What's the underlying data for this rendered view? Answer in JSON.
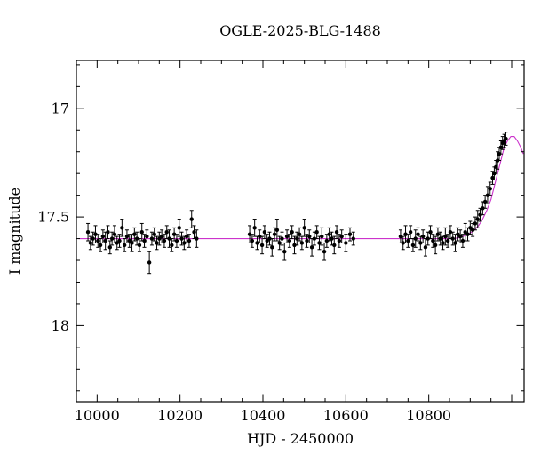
{
  "chart_data": {
    "type": "scatter",
    "title": "OGLE-2025-BLG-1488",
    "xlabel": "HJD - 2450000",
    "ylabel": "I magnitude",
    "xlim": [
      9950,
      11030
    ],
    "ylim_mag": [
      18.35,
      16.78
    ],
    "x_minor_step": 50,
    "x_major_ticks": [
      {
        "value": 10000,
        "label": "10000"
      },
      {
        "value": 10200,
        "label": "10200"
      },
      {
        "value": 10400,
        "label": "10400"
      },
      {
        "value": 10600,
        "label": "10600"
      },
      {
        "value": 10800,
        "label": "10800"
      },
      {
        "value": 11000,
        "label": ""
      }
    ],
    "y_minor_step": 0.1,
    "y_major_ticks": [
      {
        "value": 17.0,
        "label": "17"
      },
      {
        "value": 17.5,
        "label": "17.5"
      },
      {
        "value": 18.0,
        "label": "18"
      }
    ],
    "point_color": "#000000",
    "model_color": "#cc33cc",
    "baseline_mag": 17.6,
    "model_curve": [
      [
        9955,
        17.6
      ],
      [
        10860,
        17.6
      ],
      [
        10875,
        17.595
      ],
      [
        10890,
        17.585
      ],
      [
        10900,
        17.575
      ],
      [
        10910,
        17.56
      ],
      [
        10920,
        17.54
      ],
      [
        10930,
        17.51
      ],
      [
        10940,
        17.47
      ],
      [
        10950,
        17.42
      ],
      [
        10958,
        17.36
      ],
      [
        10966,
        17.3
      ],
      [
        10974,
        17.24
      ],
      [
        10982,
        17.18
      ],
      [
        10990,
        17.15
      ],
      [
        10998,
        17.13
      ],
      [
        11006,
        17.13
      ],
      [
        11014,
        17.15
      ],
      [
        11022,
        17.18
      ],
      [
        11028,
        17.21
      ]
    ],
    "points": [
      [
        9978,
        17.57,
        0.04
      ],
      [
        9984,
        17.62,
        0.03
      ],
      [
        9990,
        17.6,
        0.03
      ],
      [
        9996,
        17.58,
        0.04
      ],
      [
        10002,
        17.61,
        0.03
      ],
      [
        10008,
        17.63,
        0.03
      ],
      [
        10014,
        17.59,
        0.03
      ],
      [
        10020,
        17.61,
        0.04
      ],
      [
        10026,
        17.57,
        0.03
      ],
      [
        10031,
        17.64,
        0.03
      ],
      [
        10036,
        17.6,
        0.03
      ],
      [
        10042,
        17.58,
        0.04
      ],
      [
        10048,
        17.62,
        0.03
      ],
      [
        10054,
        17.61,
        0.03
      ],
      [
        10060,
        17.55,
        0.04
      ],
      [
        10066,
        17.63,
        0.03
      ],
      [
        10072,
        17.59,
        0.03
      ],
      [
        10078,
        17.61,
        0.03
      ],
      [
        10084,
        17.62,
        0.04
      ],
      [
        10090,
        17.58,
        0.03
      ],
      [
        10096,
        17.6,
        0.03
      ],
      [
        10102,
        17.63,
        0.03
      ],
      [
        10108,
        17.57,
        0.04
      ],
      [
        10114,
        17.61,
        0.03
      ],
      [
        10120,
        17.59,
        0.03
      ],
      [
        10126,
        17.71,
        0.05
      ],
      [
        10132,
        17.6,
        0.03
      ],
      [
        10138,
        17.58,
        0.03
      ],
      [
        10144,
        17.62,
        0.03
      ],
      [
        10150,
        17.6,
        0.03
      ],
      [
        10156,
        17.59,
        0.03
      ],
      [
        10162,
        17.61,
        0.03
      ],
      [
        10168,
        17.57,
        0.03
      ],
      [
        10174,
        17.6,
        0.04
      ],
      [
        10180,
        17.63,
        0.03
      ],
      [
        10186,
        17.58,
        0.03
      ],
      [
        10192,
        17.61,
        0.03
      ],
      [
        10198,
        17.55,
        0.04
      ],
      [
        10204,
        17.6,
        0.03
      ],
      [
        10210,
        17.62,
        0.03
      ],
      [
        10216,
        17.59,
        0.03
      ],
      [
        10222,
        17.61,
        0.03
      ],
      [
        10228,
        17.51,
        0.04
      ],
      [
        10234,
        17.57,
        0.03
      ],
      [
        10240,
        17.6,
        0.04
      ],
      [
        10368,
        17.58,
        0.04
      ],
      [
        10374,
        17.61,
        0.03
      ],
      [
        10380,
        17.55,
        0.04
      ],
      [
        10386,
        17.62,
        0.03
      ],
      [
        10392,
        17.59,
        0.03
      ],
      [
        10398,
        17.63,
        0.04
      ],
      [
        10404,
        17.57,
        0.03
      ],
      [
        10410,
        17.61,
        0.03
      ],
      [
        10416,
        17.6,
        0.03
      ],
      [
        10422,
        17.64,
        0.04
      ],
      [
        10428,
        17.58,
        0.03
      ],
      [
        10434,
        17.56,
        0.05
      ],
      [
        10440,
        17.62,
        0.03
      ],
      [
        10446,
        17.6,
        0.03
      ],
      [
        10452,
        17.66,
        0.04
      ],
      [
        10458,
        17.59,
        0.03
      ],
      [
        10464,
        17.61,
        0.03
      ],
      [
        10470,
        17.57,
        0.03
      ],
      [
        10476,
        17.63,
        0.04
      ],
      [
        10482,
        17.6,
        0.03
      ],
      [
        10488,
        17.58,
        0.03
      ],
      [
        10494,
        17.62,
        0.03
      ],
      [
        10500,
        17.55,
        0.04
      ],
      [
        10506,
        17.61,
        0.03
      ],
      [
        10512,
        17.59,
        0.03
      ],
      [
        10518,
        17.64,
        0.04
      ],
      [
        10524,
        17.6,
        0.03
      ],
      [
        10530,
        17.57,
        0.03
      ],
      [
        10536,
        17.62,
        0.03
      ],
      [
        10542,
        17.59,
        0.04
      ],
      [
        10548,
        17.66,
        0.04
      ],
      [
        10554,
        17.61,
        0.03
      ],
      [
        10560,
        17.58,
        0.03
      ],
      [
        10566,
        17.6,
        0.03
      ],
      [
        10572,
        17.63,
        0.04
      ],
      [
        10578,
        17.57,
        0.03
      ],
      [
        10584,
        17.61,
        0.03
      ],
      [
        10590,
        17.59,
        0.03
      ],
      [
        10600,
        17.62,
        0.04
      ],
      [
        10610,
        17.58,
        0.03
      ],
      [
        10618,
        17.6,
        0.03
      ],
      [
        10732,
        17.59,
        0.03
      ],
      [
        10738,
        17.62,
        0.03
      ],
      [
        10744,
        17.58,
        0.04
      ],
      [
        10750,
        17.61,
        0.03
      ],
      [
        10756,
        17.57,
        0.03
      ],
      [
        10762,
        17.63,
        0.03
      ],
      [
        10768,
        17.6,
        0.04
      ],
      [
        10774,
        17.58,
        0.03
      ],
      [
        10780,
        17.62,
        0.03
      ],
      [
        10786,
        17.59,
        0.03
      ],
      [
        10792,
        17.64,
        0.04
      ],
      [
        10798,
        17.6,
        0.03
      ],
      [
        10804,
        17.57,
        0.03
      ],
      [
        10810,
        17.61,
        0.03
      ],
      [
        10816,
        17.63,
        0.04
      ],
      [
        10822,
        17.58,
        0.03
      ],
      [
        10828,
        17.6,
        0.03
      ],
      [
        10834,
        17.62,
        0.03
      ],
      [
        10840,
        17.59,
        0.04
      ],
      [
        10846,
        17.61,
        0.03
      ],
      [
        10852,
        17.57,
        0.03
      ],
      [
        10858,
        17.6,
        0.03
      ],
      [
        10864,
        17.62,
        0.04
      ],
      [
        10870,
        17.58,
        0.03
      ],
      [
        10876,
        17.59,
        0.03
      ],
      [
        10882,
        17.61,
        0.03
      ],
      [
        10888,
        17.57,
        0.04
      ],
      [
        10894,
        17.58,
        0.03
      ],
      [
        10900,
        17.55,
        0.03
      ],
      [
        10906,
        17.56,
        0.03
      ],
      [
        10912,
        17.53,
        0.03
      ],
      [
        10918,
        17.51,
        0.04
      ],
      [
        10924,
        17.49,
        0.03
      ],
      [
        10930,
        17.46,
        0.03
      ],
      [
        10936,
        17.43,
        0.03
      ],
      [
        10942,
        17.4,
        0.04
      ],
      [
        10948,
        17.37,
        0.03
      ],
      [
        10954,
        17.32,
        0.03
      ],
      [
        10958,
        17.3,
        0.03
      ],
      [
        10962,
        17.27,
        0.03
      ],
      [
        10966,
        17.24,
        0.04
      ],
      [
        10970,
        17.21,
        0.03
      ],
      [
        10974,
        17.18,
        0.03
      ],
      [
        10978,
        17.16,
        0.03
      ],
      [
        10982,
        17.15,
        0.03
      ],
      [
        10986,
        17.14,
        0.03
      ]
    ]
  }
}
